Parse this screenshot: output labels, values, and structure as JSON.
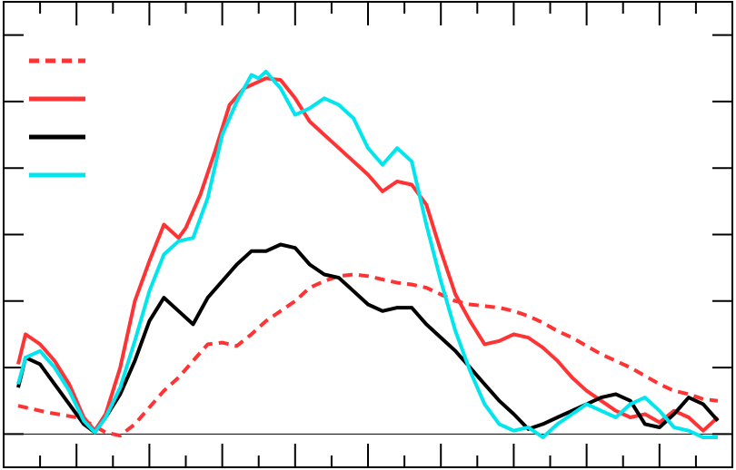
{
  "chart_data": {
    "type": "line",
    "title": "",
    "xlabel": "",
    "ylabel": "",
    "xlim": [
      0,
      100
    ],
    "ylim": [
      -10,
      130
    ],
    "baseline_y": 0,
    "x_ticks": [
      0,
      10,
      20,
      30,
      40,
      50,
      60,
      70,
      80,
      90,
      100
    ],
    "y_ticks": [
      -10,
      0,
      20,
      40,
      60,
      80,
      100,
      120
    ],
    "grid": false,
    "legend_placement": "top-left",
    "series": [
      {
        "color": "#ff3333",
        "style": "dashed",
        "x": [
          2,
          6,
          10,
          12,
          14,
          16,
          18,
          20,
          22,
          24,
          26,
          28,
          30,
          32,
          34,
          36,
          38,
          40,
          42,
          44,
          46,
          48,
          50,
          52,
          54,
          56,
          58,
          60,
          62,
          64,
          66,
          68,
          70,
          72,
          74,
          76,
          78,
          80,
          82,
          84,
          86,
          88,
          90,
          92,
          94,
          96,
          98
        ],
        "values": [
          8.5,
          6.5,
          5,
          3,
          0.5,
          -0.5,
          3,
          8,
          13,
          17,
          22,
          27,
          27.5,
          26.5,
          30,
          34,
          37,
          40,
          44,
          46,
          47.5,
          48,
          47.5,
          46.5,
          45.5,
          45,
          44,
          42,
          40,
          39,
          38.5,
          38,
          37,
          35.5,
          33.5,
          31,
          29,
          26.5,
          24,
          22,
          20,
          17.5,
          15,
          13,
          12,
          10.5,
          10
        ]
      },
      {
        "color": "#ff3333",
        "style": "solid",
        "x": [
          2,
          3,
          5,
          7,
          9,
          11,
          12.5,
          14,
          16,
          18,
          20,
          22,
          24,
          25,
          27,
          29,
          31,
          33,
          34.5,
          36,
          38,
          40,
          42,
          44,
          46,
          48,
          50,
          52,
          54,
          56,
          58,
          60,
          62,
          64,
          66,
          68,
          70,
          72,
          74,
          76,
          78,
          80,
          82,
          84,
          86,
          88,
          90,
          92,
          94,
          96,
          98
        ],
        "values": [
          21,
          30,
          27,
          22,
          15,
          5,
          1,
          6,
          20,
          40,
          52,
          63,
          59,
          62,
          72,
          85,
          99,
          104,
          105.5,
          107,
          106.5,
          101,
          94,
          90,
          86,
          82,
          78,
          73,
          76,
          75,
          69,
          55,
          42,
          34,
          27,
          28,
          30,
          29,
          26,
          22,
          17,
          13,
          10,
          7,
          5,
          6,
          3.5,
          7,
          5,
          1,
          5
        ]
      },
      {
        "color": "#000000",
        "style": "solid",
        "x": [
          2,
          3,
          5,
          7,
          9,
          11,
          12.5,
          14,
          16,
          18,
          20,
          22,
          24,
          26,
          28,
          30,
          32,
          34,
          36,
          38,
          40,
          42,
          44,
          46,
          48,
          50,
          52,
          54,
          56,
          58,
          60,
          62,
          64,
          66,
          68,
          70,
          72,
          74,
          76,
          78,
          80,
          82,
          84,
          86,
          88,
          90,
          92,
          94,
          96,
          98
        ],
        "values": [
          14,
          23,
          21,
          15,
          9,
          3,
          0.5,
          5,
          12,
          22,
          34,
          41,
          37,
          33,
          41,
          46,
          51,
          55,
          55,
          57,
          56,
          51,
          48,
          47,
          43,
          39,
          37,
          38,
          38,
          33,
          29,
          25,
          20,
          15,
          10,
          6,
          1.5,
          3,
          5,
          7,
          9,
          11,
          12,
          10,
          3,
          2,
          6,
          11,
          9,
          4
        ]
      },
      {
        "color": "#00e5ee",
        "style": "solid",
        "x": [
          2,
          3,
          5,
          7,
          9,
          11,
          12.5,
          14,
          16,
          18,
          20,
          22,
          24,
          26,
          28,
          30,
          32,
          34,
          35,
          36,
          38,
          40,
          42,
          44,
          46,
          48,
          50,
          52,
          54,
          56,
          58,
          60,
          62,
          64,
          66,
          68,
          70,
          72,
          74,
          76,
          78,
          80,
          82,
          84,
          86,
          88,
          90,
          92,
          94,
          96,
          98
        ],
        "values": [
          15,
          23,
          25,
          20,
          13,
          4,
          0.5,
          5,
          14,
          28,
          43,
          54,
          58,
          59,
          71,
          90,
          100,
          108,
          107,
          109,
          104,
          96,
          98,
          101,
          99,
          95,
          86,
          81,
          86,
          82,
          63,
          46,
          31,
          19,
          9,
          3,
          1,
          2,
          -1,
          3,
          6,
          9,
          7,
          5,
          9,
          11,
          7,
          2,
          1,
          -1,
          -1
        ]
      }
    ]
  }
}
